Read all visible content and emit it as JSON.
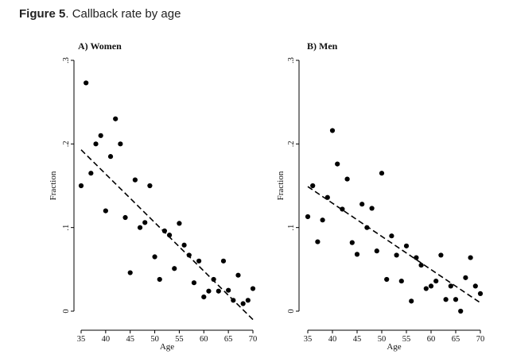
{
  "figure": {
    "label": "Figure 5",
    "rest": ". Callback rate by age"
  },
  "chart_data": [
    {
      "type": "scatter",
      "title": "A) Women",
      "xlabel": "Age",
      "ylabel": "Fraction",
      "xlim": [
        35,
        70
      ],
      "ylim": [
        0,
        0.3
      ],
      "xticks": [
        "35",
        "40",
        "45",
        "50",
        "55",
        "60",
        "65",
        "70"
      ],
      "yticks": [
        "0",
        ".1",
        ".2",
        ".3"
      ],
      "trend": {
        "style": "dashed",
        "x": [
          35,
          70
        ],
        "y": [
          0.193,
          -0.01
        ]
      },
      "series": [
        {
          "x": [
            35,
            36,
            37,
            38,
            39,
            40,
            41,
            42,
            43,
            44,
            45,
            46,
            47,
            48,
            49,
            50,
            51,
            52,
            53,
            54,
            55,
            56,
            57,
            58,
            59,
            60,
            61,
            62,
            63,
            64,
            65,
            66,
            67,
            68,
            69,
            70
          ],
          "y": [
            0.15,
            0.273,
            0.165,
            0.2,
            0.21,
            0.12,
            0.185,
            0.23,
            0.2,
            0.112,
            0.046,
            0.157,
            0.1,
            0.106,
            0.15,
            0.065,
            0.038,
            0.096,
            0.091,
            0.051,
            0.105,
            0.079,
            0.067,
            0.034,
            0.06,
            0.017,
            0.024,
            0.038,
            0.024,
            0.06,
            0.025,
            0.013,
            0.043,
            0.009,
            0.013,
            0.027
          ]
        }
      ]
    },
    {
      "type": "scatter",
      "title": "B) Men",
      "xlabel": "Age",
      "ylabel": "Fraction",
      "xlim": [
        35,
        70
      ],
      "ylim": [
        0,
        0.3
      ],
      "xticks": [
        "35",
        "40",
        "45",
        "50",
        "55",
        "60",
        "65",
        "70"
      ],
      "yticks": [
        "0",
        ".1",
        ".2",
        ".3"
      ],
      "trend": {
        "style": "dashed",
        "x": [
          35,
          70
        ],
        "y": [
          0.149,
          0.01
        ]
      },
      "series": [
        {
          "x": [
            35,
            36,
            37,
            38,
            39,
            40,
            41,
            42,
            43,
            44,
            45,
            46,
            47,
            48,
            49,
            50,
            51,
            52,
            53,
            54,
            55,
            56,
            57,
            58,
            59,
            60,
            61,
            62,
            63,
            64,
            65,
            66,
            67,
            68,
            69,
            70
          ],
          "y": [
            0.113,
            0.15,
            0.083,
            0.109,
            0.136,
            0.216,
            0.176,
            0.122,
            0.158,
            0.082,
            0.068,
            0.128,
            0.1,
            0.123,
            0.072,
            0.165,
            0.038,
            0.09,
            0.067,
            0.036,
            0.078,
            0.012,
            0.064,
            0.055,
            0.027,
            0.03,
            0.036,
            0.067,
            0.014,
            0.03,
            0.014,
            0.0,
            0.04,
            0.064,
            0.03,
            0.021
          ]
        }
      ]
    }
  ]
}
